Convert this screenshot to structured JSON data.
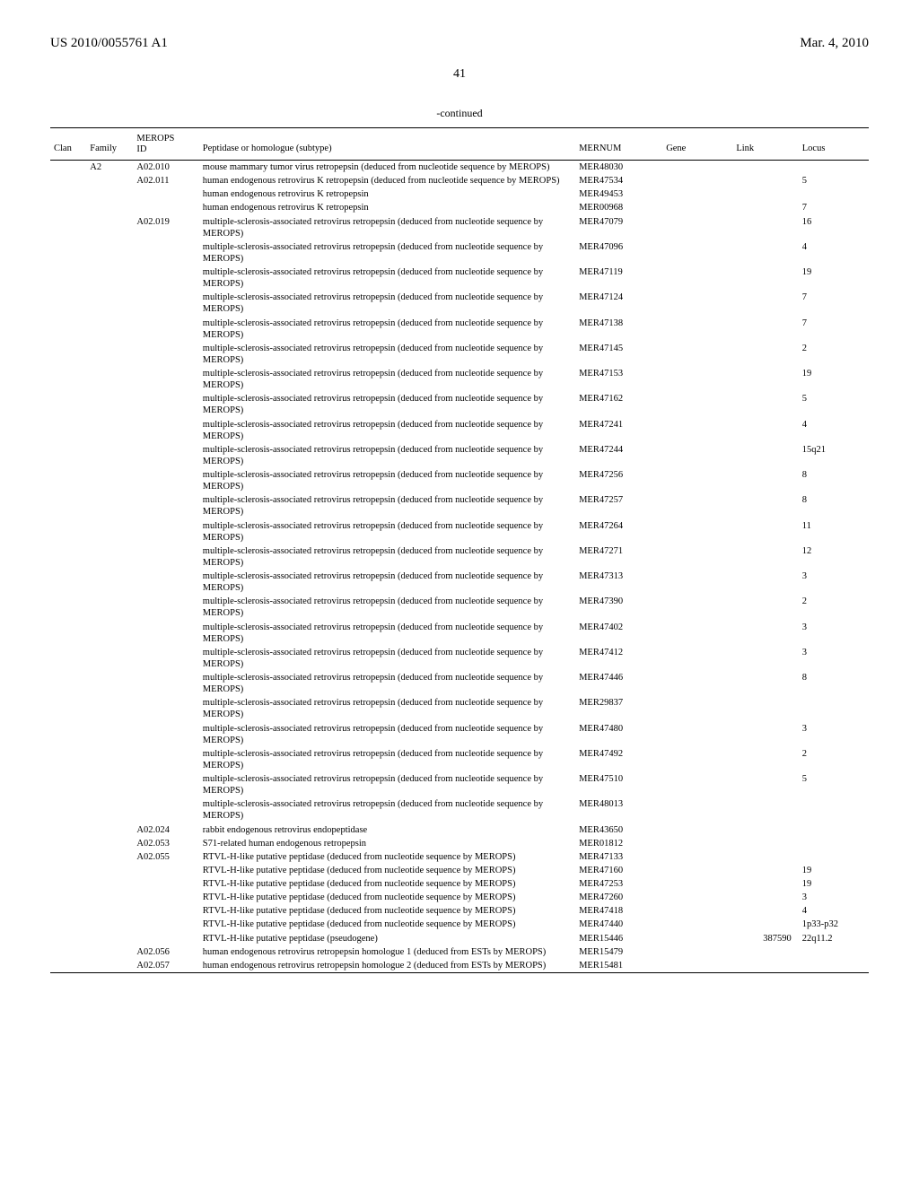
{
  "header": {
    "left": "US 2010/0055761 A1",
    "right": "Mar. 4, 2010",
    "page_number": "41",
    "continued": "-continued"
  },
  "columns": {
    "clan": "Clan",
    "family": "Family",
    "merops_id_line1": "MEROPS",
    "merops_id_line2": "ID",
    "peptidase": "Peptidase or homologue (subtype)",
    "mernum": "MERNUM",
    "gene": "Gene",
    "link": "Link",
    "locus": "Locus"
  },
  "rows": [
    {
      "clan": "",
      "family": "A2",
      "merops": "A02.010",
      "pept": "mouse mammary tumor virus retropepsin (deduced from nucleotide sequence by MEROPS)",
      "mernum": "MER48030",
      "gene": "",
      "link": "",
      "locus": ""
    },
    {
      "clan": "",
      "family": "",
      "merops": "A02.011",
      "pept": "human endogenous retrovirus K retropepsin (deduced from nucleotide sequence by MEROPS)",
      "mernum": "MER47534",
      "gene": "",
      "link": "",
      "locus": "5"
    },
    {
      "clan": "",
      "family": "",
      "merops": "",
      "pept": "human endogenous retrovirus K retropepsin",
      "mernum": "MER49453",
      "gene": "",
      "link": "",
      "locus": ""
    },
    {
      "clan": "",
      "family": "",
      "merops": "",
      "pept": "human endogenous retrovirus K retropepsin",
      "mernum": "MER00968",
      "gene": "",
      "link": "",
      "locus": "7"
    },
    {
      "clan": "",
      "family": "",
      "merops": "A02.019",
      "pept": "multiple-sclerosis-associated retrovirus retropepsin (deduced from nucleotide sequence by MEROPS)",
      "mernum": "MER47079",
      "gene": "",
      "link": "",
      "locus": "16"
    },
    {
      "clan": "",
      "family": "",
      "merops": "",
      "pept": "multiple-sclerosis-associated retrovirus retropepsin (deduced from nucleotide sequence by MEROPS)",
      "mernum": "MER47096",
      "gene": "",
      "link": "",
      "locus": "4"
    },
    {
      "clan": "",
      "family": "",
      "merops": "",
      "pept": "multiple-sclerosis-associated retrovirus retropepsin (deduced from nucleotide sequence by MEROPS)",
      "mernum": "MER47119",
      "gene": "",
      "link": "",
      "locus": "19"
    },
    {
      "clan": "",
      "family": "",
      "merops": "",
      "pept": "multiple-sclerosis-associated retrovirus retropepsin (deduced from nucleotide sequence by MEROPS)",
      "mernum": "MER47124",
      "gene": "",
      "link": "",
      "locus": "7"
    },
    {
      "clan": "",
      "family": "",
      "merops": "",
      "pept": "multiple-sclerosis-associated retrovirus retropepsin (deduced from nucleotide sequence by MEROPS)",
      "mernum": "MER47138",
      "gene": "",
      "link": "",
      "locus": "7"
    },
    {
      "clan": "",
      "family": "",
      "merops": "",
      "pept": "multiple-sclerosis-associated retrovirus retropepsin (deduced from nucleotide sequence by MEROPS)",
      "mernum": "MER47145",
      "gene": "",
      "link": "",
      "locus": "2"
    },
    {
      "clan": "",
      "family": "",
      "merops": "",
      "pept": "multiple-sclerosis-associated retrovirus retropepsin (deduced from nucleotide sequence by MEROPS)",
      "mernum": "MER47153",
      "gene": "",
      "link": "",
      "locus": "19"
    },
    {
      "clan": "",
      "family": "",
      "merops": "",
      "pept": "multiple-sclerosis-associated retrovirus retropepsin (deduced from nucleotide sequence by MEROPS)",
      "mernum": "MER47162",
      "gene": "",
      "link": "",
      "locus": "5"
    },
    {
      "clan": "",
      "family": "",
      "merops": "",
      "pept": "multiple-sclerosis-associated retrovirus retropepsin (deduced from nucleotide sequence by MEROPS)",
      "mernum": "MER47241",
      "gene": "",
      "link": "",
      "locus": "4"
    },
    {
      "clan": "",
      "family": "",
      "merops": "",
      "pept": "multiple-sclerosis-associated retrovirus retropepsin (deduced from nucleotide sequence by MEROPS)",
      "mernum": "MER47244",
      "gene": "",
      "link": "",
      "locus": "15q21"
    },
    {
      "clan": "",
      "family": "",
      "merops": "",
      "pept": "multiple-sclerosis-associated retrovirus retropepsin (deduced from nucleotide sequence by MEROPS)",
      "mernum": "MER47256",
      "gene": "",
      "link": "",
      "locus": "8"
    },
    {
      "clan": "",
      "family": "",
      "merops": "",
      "pept": "multiple-sclerosis-associated retrovirus retropepsin (deduced from nucleotide sequence by MEROPS)",
      "mernum": "MER47257",
      "gene": "",
      "link": "",
      "locus": "8"
    },
    {
      "clan": "",
      "family": "",
      "merops": "",
      "pept": "multiple-sclerosis-associated retrovirus retropepsin (deduced from nucleotide sequence by MEROPS)",
      "mernum": "MER47264",
      "gene": "",
      "link": "",
      "locus": "11"
    },
    {
      "clan": "",
      "family": "",
      "merops": "",
      "pept": "multiple-sclerosis-associated retrovirus retropepsin (deduced from nucleotide sequence by MEROPS)",
      "mernum": "MER47271",
      "gene": "",
      "link": "",
      "locus": "12"
    },
    {
      "clan": "",
      "family": "",
      "merops": "",
      "pept": "multiple-sclerosis-associated retrovirus retropepsin (deduced from nucleotide sequence by MEROPS)",
      "mernum": "MER47313",
      "gene": "",
      "link": "",
      "locus": "3"
    },
    {
      "clan": "",
      "family": "",
      "merops": "",
      "pept": "multiple-sclerosis-associated retrovirus retropepsin (deduced from nucleotide sequence by MEROPS)",
      "mernum": "MER47390",
      "gene": "",
      "link": "",
      "locus": "2"
    },
    {
      "clan": "",
      "family": "",
      "merops": "",
      "pept": "multiple-sclerosis-associated retrovirus retropepsin (deduced from nucleotide sequence by MEROPS)",
      "mernum": "MER47402",
      "gene": "",
      "link": "",
      "locus": "3"
    },
    {
      "clan": "",
      "family": "",
      "merops": "",
      "pept": "multiple-sclerosis-associated retrovirus retropepsin (deduced from nucleotide sequence by MEROPS)",
      "mernum": "MER47412",
      "gene": "",
      "link": "",
      "locus": "3"
    },
    {
      "clan": "",
      "family": "",
      "merops": "",
      "pept": "multiple-sclerosis-associated retrovirus retropepsin (deduced from nucleotide sequence by MEROPS)",
      "mernum": "MER47446",
      "gene": "",
      "link": "",
      "locus": "8"
    },
    {
      "clan": "",
      "family": "",
      "merops": "",
      "pept": "multiple-sclerosis-associated retrovirus retropepsin (deduced from nucleotide sequence by MEROPS)",
      "mernum": "MER29837",
      "gene": "",
      "link": "",
      "locus": ""
    },
    {
      "clan": "",
      "family": "",
      "merops": "",
      "pept": "multiple-sclerosis-associated retrovirus retropepsin (deduced from nucleotide sequence by MEROPS)",
      "mernum": "MER47480",
      "gene": "",
      "link": "",
      "locus": "3"
    },
    {
      "clan": "",
      "family": "",
      "merops": "",
      "pept": "multiple-sclerosis-associated retrovirus retropepsin (deduced from nucleotide sequence by MEROPS)",
      "mernum": "MER47492",
      "gene": "",
      "link": "",
      "locus": "2"
    },
    {
      "clan": "",
      "family": "",
      "merops": "",
      "pept": "multiple-sclerosis-associated retrovirus retropepsin (deduced from nucleotide sequence by MEROPS)",
      "mernum": "MER47510",
      "gene": "",
      "link": "",
      "locus": "5"
    },
    {
      "clan": "",
      "family": "",
      "merops": "",
      "pept": "multiple-sclerosis-associated retrovirus retropepsin (deduced from nucleotide sequence by MEROPS)",
      "mernum": "MER48013",
      "gene": "",
      "link": "",
      "locus": ""
    },
    {
      "clan": "",
      "family": "",
      "merops": "A02.024",
      "pept": "rabbit endogenous retrovirus endopeptidase",
      "mernum": "MER43650",
      "gene": "",
      "link": "",
      "locus": ""
    },
    {
      "clan": "",
      "family": "",
      "merops": "A02.053",
      "pept": "S71-related human endogenous retropepsin",
      "mernum": "MER01812",
      "gene": "",
      "link": "",
      "locus": ""
    },
    {
      "clan": "",
      "family": "",
      "merops": "A02.055",
      "pept": "RTVL-H-like putative peptidase (deduced from nucleotide sequence by MEROPS)",
      "mernum": "MER47133",
      "gene": "",
      "link": "",
      "locus": ""
    },
    {
      "clan": "",
      "family": "",
      "merops": "",
      "pept": "RTVL-H-like putative peptidase (deduced from nucleotide sequence by MEROPS)",
      "mernum": "MER47160",
      "gene": "",
      "link": "",
      "locus": "19"
    },
    {
      "clan": "",
      "family": "",
      "merops": "",
      "pept": "RTVL-H-like putative peptidase (deduced from nucleotide sequence by MEROPS)",
      "mernum": "MER47253",
      "gene": "",
      "link": "",
      "locus": "19"
    },
    {
      "clan": "",
      "family": "",
      "merops": "",
      "pept": "RTVL-H-like putative peptidase (deduced from nucleotide sequence by MEROPS)",
      "mernum": "MER47260",
      "gene": "",
      "link": "",
      "locus": "3"
    },
    {
      "clan": "",
      "family": "",
      "merops": "",
      "pept": "RTVL-H-like putative peptidase (deduced from nucleotide sequence by MEROPS)",
      "mernum": "MER47418",
      "gene": "",
      "link": "",
      "locus": "4"
    },
    {
      "clan": "",
      "family": "",
      "merops": "",
      "pept": "RTVL-H-like putative peptidase (deduced from nucleotide sequence by MEROPS)",
      "mernum": "MER47440",
      "gene": "",
      "link": "",
      "locus": "1p33-p32"
    },
    {
      "clan": "",
      "family": "",
      "merops": "",
      "pept": "RTVL-H-like putative peptidase (pseudogene)",
      "mernum": "MER15446",
      "gene": "",
      "link": "387590",
      "locus": "22q11.2"
    },
    {
      "clan": "",
      "family": "",
      "merops": "A02.056",
      "pept": "human endogenous retrovirus retropepsin homologue 1 (deduced from ESTs by MEROPS)",
      "mernum": "MER15479",
      "gene": "",
      "link": "",
      "locus": ""
    },
    {
      "clan": "",
      "family": "",
      "merops": "A02.057",
      "pept": "human endogenous retrovirus retropepsin homologue 2 (deduced from ESTs by MEROPS)",
      "mernum": "MER15481",
      "gene": "",
      "link": "",
      "locus": ""
    }
  ]
}
